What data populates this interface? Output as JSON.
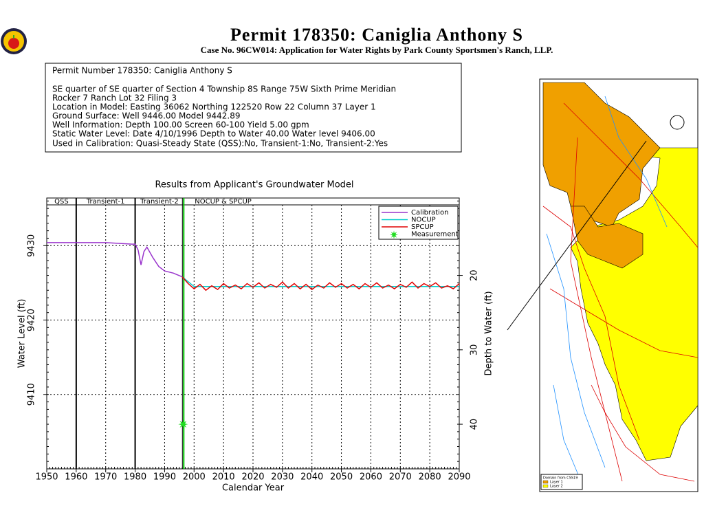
{
  "header": {
    "title": "Permit 178350:  Caniglia Anthony S",
    "subtitle": "Case No. 96CW014: Application for Water Rights by Park County Sportsmen's Ranch, LLP."
  },
  "info": {
    "lines": [
      "Permit Number 178350: Caniglia Anthony S",
      "SE quarter of SE quarter of Section 4 Township 8S Range 75W Sixth Prime Meridian",
      "Rocker 7 Ranch Lot 32 Filing 3",
      "Location in Model: Easting 36062 Northing 122520 Row   22 Column 37 Layer 1",
      "Ground Surface: Well   9446.00 Model   9442.89",
      "Well Information: Depth    100.00 Screen 60-100 Yield      5.00 gpm",
      "Static Water Level: Date   4/10/1996 Depth to Water     40.00 Water level  9406.00",
      "Used in Calibration: Quasi-Steady State (QSS):No, Transient-1:No, Transient-2:Yes"
    ]
  },
  "chart_data": {
    "type": "line",
    "title": "Results from Applicant's Groundwater Model",
    "x_label": "Calendar Year",
    "y_label": "Water Level (ft)",
    "y2_label": "Depth to Water (ft)",
    "xlim": [
      1950,
      2090
    ],
    "xticks": [
      1950,
      1960,
      1970,
      1980,
      1990,
      2000,
      2010,
      2020,
      2030,
      2040,
      2050,
      2060,
      2070,
      2080,
      2090
    ],
    "ylim": [
      9400,
      9436.4
    ],
    "yticks": [
      9410,
      9420,
      9430
    ],
    "y2lim": [
      46,
      9.6
    ],
    "y2ticks": [
      20,
      30,
      40
    ],
    "grid": true,
    "legend": "upper right",
    "periods": [
      {
        "label": "QSS",
        "start": 1950,
        "line_color": "#000000"
      },
      {
        "label": "Transient-1",
        "start": 1960,
        "line_color": "#000000"
      },
      {
        "label": "Transient-2",
        "start": 1980,
        "line_color": "#000000"
      },
      {
        "label": "NOCUP  &  SPCUP",
        "start": 1996.5,
        "line_color": "#00c000"
      }
    ],
    "series": [
      {
        "name": "Calibration",
        "color": "#9933cc",
        "x": [
          1950,
          1970,
          1979,
          1980,
          1981,
          1982,
          1983,
          1984,
          1986,
          1988,
          1990,
          1993,
          1996
        ],
        "values": [
          9430.4,
          9430.4,
          9430.2,
          9430.2,
          9429.4,
          9427.4,
          9429.2,
          9429.8,
          9428.4,
          9427.2,
          9426.6,
          9426.3,
          9425.8
        ]
      },
      {
        "name": "NOCUP",
        "color": "#00cccc",
        "x": [
          1996,
          2000,
          2020,
          2040,
          2060,
          2090
        ],
        "values": [
          9425.8,
          9424.5,
          9424.5,
          9424.5,
          9424.5,
          9424.5
        ]
      },
      {
        "name": "SPCUP",
        "color": "#e00000",
        "x": [
          1996,
          1998,
          2000,
          2002,
          2004,
          2006,
          2008,
          2010,
          2012,
          2014,
          2016,
          2018,
          2020,
          2022,
          2024,
          2026,
          2028,
          2030,
          2032,
          2034,
          2036,
          2038,
          2040,
          2042,
          2044,
          2046,
          2048,
          2050,
          2052,
          2054,
          2056,
          2058,
          2060,
          2062,
          2064,
          2066,
          2068,
          2070,
          2072,
          2074,
          2076,
          2078,
          2080,
          2082,
          2084,
          2086,
          2088,
          2090
        ],
        "values": [
          9425.8,
          9424.9,
          9424.2,
          9424.8,
          9424.0,
          9424.6,
          9424.1,
          9424.9,
          9424.3,
          9424.7,
          9424.2,
          9424.9,
          9424.4,
          9425.0,
          9424.3,
          9424.8,
          9424.4,
          9425.1,
          9424.3,
          9424.9,
          9424.2,
          9424.8,
          9424.1,
          9424.7,
          9424.3,
          9425.0,
          9424.4,
          9424.9,
          9424.3,
          9424.8,
          9424.2,
          9424.9,
          9424.4,
          9425.0,
          9424.3,
          9424.7,
          9424.2,
          9424.8,
          9424.4,
          9425.1,
          9424.3,
          9424.9,
          9424.5,
          9425.0,
          9424.3,
          9424.6,
          9424.2,
          9424.9
        ]
      },
      {
        "name": "Measurement",
        "color": "#22dd22",
        "marker": "star",
        "x": [
          1996.3
        ],
        "values": [
          9406
        ]
      }
    ]
  },
  "map": {
    "legend_title": "Domain from CSS19",
    "legend_items": [
      "Layer 1",
      "Layer 2"
    ]
  }
}
